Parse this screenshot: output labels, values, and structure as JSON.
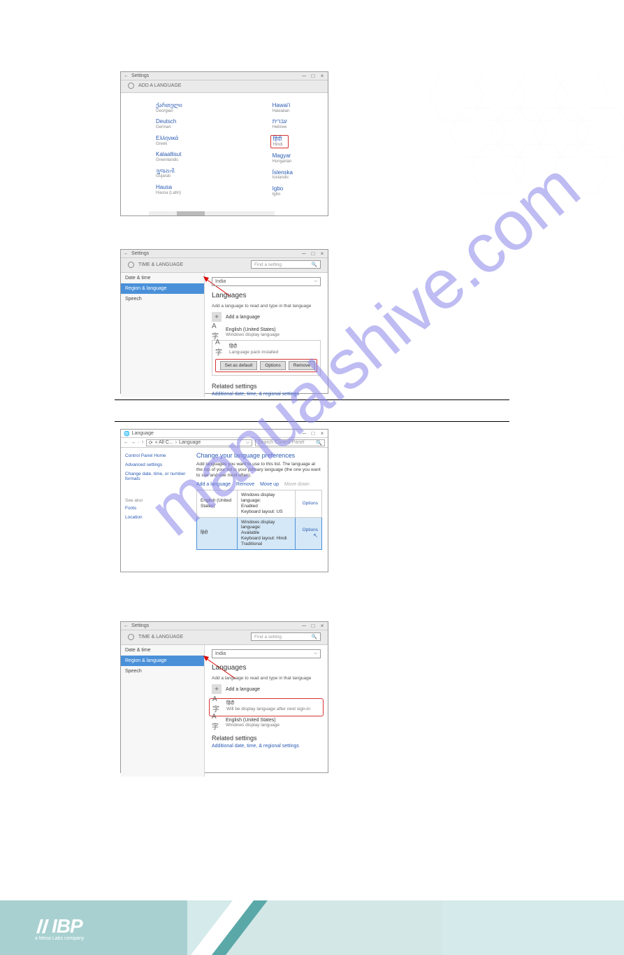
{
  "watermark": "manualshive.com",
  "win_controls": {
    "min": "─",
    "max": "□",
    "close": "×"
  },
  "s1": {
    "back": "←",
    "label": "Settings",
    "title": "ADD A LANGUAGE",
    "left_col": [
      {
        "native": "ქართული",
        "eng": "Georgian"
      },
      {
        "native": "Deutsch",
        "eng": "German"
      },
      {
        "native": "Ελληνικά",
        "eng": "Greek"
      },
      {
        "native": "Kalaallisut",
        "eng": "Greenlandic"
      },
      {
        "native": "ગુજરાતી",
        "eng": "Gujarati"
      },
      {
        "native": "Hausa",
        "eng": "Hausa (Latin)"
      }
    ],
    "right_col": [
      {
        "native": "Hawaiʻi",
        "eng": "Hawaiian"
      },
      {
        "native": "עברית",
        "eng": "Hebrew"
      },
      {
        "native": "हिंदी",
        "eng": "Hindi",
        "highlight": true
      },
      {
        "native": "Magyar",
        "eng": "Hungarian"
      },
      {
        "native": "Íslenska",
        "eng": "Icelandic"
      },
      {
        "native": "Igbo",
        "eng": "Igbo"
      }
    ]
  },
  "s2": {
    "label": "Settings",
    "title": "TIME & LANGUAGE",
    "search_placeholder": "Find a setting",
    "side": [
      "Date & time",
      "Region & language",
      "Speech"
    ],
    "country": "India",
    "h": "Languages",
    "desc": "Add a language to read and type in that language",
    "add": "Add a language",
    "lang1": {
      "name": "English (United States)",
      "sub": "Windows display language"
    },
    "lang2": {
      "name": "हिंदी",
      "sub": "Language pack installed"
    },
    "btns": [
      "Set as default",
      "Options",
      "Remove"
    ],
    "related_h": "Related settings",
    "related_link": "Additional date, time, & regional settings"
  },
  "s3": {
    "title": "Language",
    "crumb_parts": [
      "←",
      "→",
      "↑",
      "⟳",
      "« All C...",
      "Language"
    ],
    "search": "Search Control Panel",
    "side": {
      "home": "Control Panel Home",
      "adv": "Advanced settings",
      "dtf": "Change date, time, or number formats",
      "see": "See also",
      "fonts": "Fonts",
      "loc": "Location"
    },
    "h": "Change your language preferences",
    "desc": "Add languages you want to use to this list. The language at the top of your list is your primary language (the one you want to see and use most often).",
    "tools": [
      "Add a language",
      "Remove",
      "Move up"
    ],
    "tool_dis": "Move down",
    "row1": {
      "name": "English (United States)",
      "d1": "Windows display language:",
      "d1v": "Enabled",
      "d2": "Keyboard layout: US",
      "opt": "Options"
    },
    "row2": {
      "name": "हिंदी",
      "d1": "Windows display language:",
      "d1v": "Available",
      "d2": "Keyboard layout: Hindi",
      "d3": "Traditional",
      "opt": "Options"
    }
  },
  "s4": {
    "label": "Settings",
    "title": "TIME & LANGUAGE",
    "search_placeholder": "Find a setting",
    "side": [
      "Date & time",
      "Region & language",
      "Speech"
    ],
    "country": "India",
    "h": "Languages",
    "desc": "Add a language to read and type in that language",
    "add": "Add a language",
    "lang1": {
      "name": "हिंदी",
      "sub": "Will be display language after next sign-in"
    },
    "lang2": {
      "name": "English (United States)",
      "sub": "Windows display language"
    },
    "related_h": "Related settings",
    "related_link": "Additional date, time, & regional settings"
  },
  "footer": {
    "logo": "IBP",
    "tagline": "a Mesa Labs company"
  },
  "colors": {
    "red": "#d63333",
    "blue": "#2a5ab3",
    "sel": "#4a90d9",
    "teal_dark": "#5ba8a8",
    "teal_light": "#a8d0d0",
    "wm": "#8a87e8"
  }
}
